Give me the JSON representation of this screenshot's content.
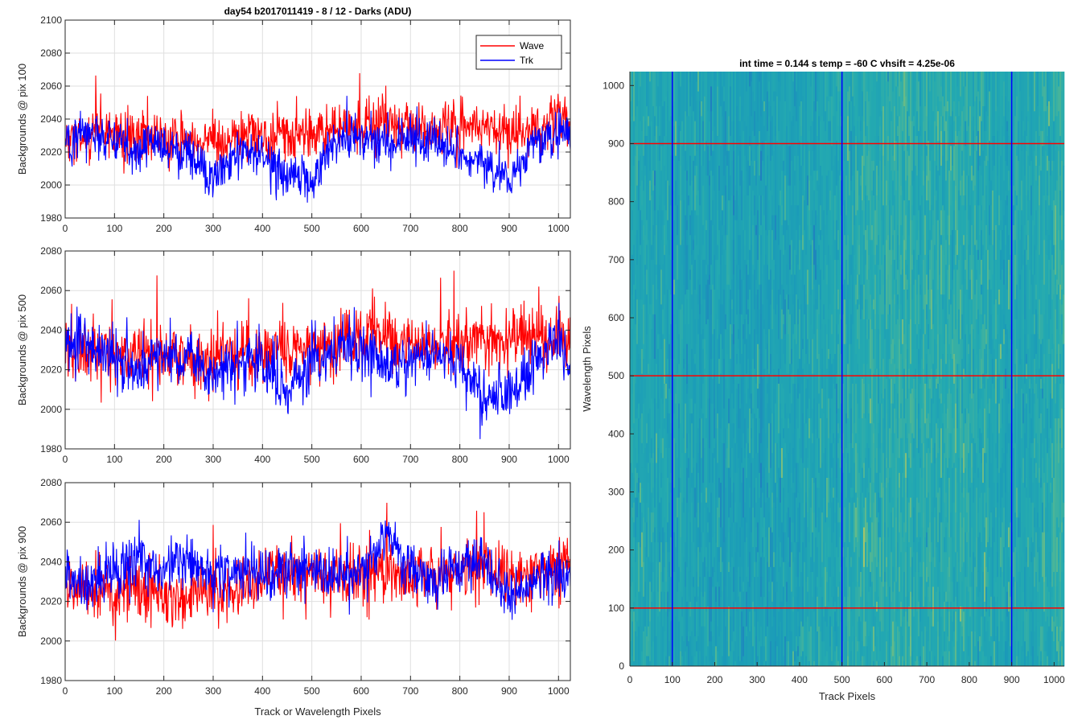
{
  "chart_data": [
    {
      "type": "line",
      "title": "day54 b2017011419 - 8 / 12 - Darks (ADU)",
      "xlabel": "",
      "ylabel": "Backgrounds @ pix 100",
      "xlim": [
        0,
        1024
      ],
      "ylim": [
        1980,
        2100
      ],
      "xticks": [
        0,
        100,
        200,
        300,
        400,
        500,
        600,
        700,
        800,
        900,
        1000
      ],
      "xtick_labels": [
        "0",
        "100",
        "200",
        "300",
        "400",
        "500",
        "600",
        "700",
        "800",
        "900",
        "1000"
      ],
      "yticks": [
        1980,
        2000,
        2020,
        2040,
        2060,
        2080,
        2100
      ],
      "ytick_labels": [
        "1980",
        "2000",
        "2020",
        "2040",
        "2060",
        "2080",
        "2100"
      ],
      "grid": true,
      "legend": {
        "location": "top-right",
        "entries": [
          "Wave",
          "Trk"
        ]
      },
      "series": [
        {
          "name": "Wave",
          "color": "#ff0000",
          "x": [
            0,
            50,
            100,
            150,
            200,
            250,
            300,
            350,
            400,
            450,
            500,
            550,
            600,
            650,
            700,
            750,
            800,
            850,
            900,
            950,
            1000,
            1024
          ],
          "values": [
            2028,
            2030,
            2031,
            2029,
            2028,
            2027,
            2028,
            2027,
            2031,
            2030,
            2031,
            2033,
            2036,
            2037,
            2035,
            2034,
            2035,
            2034,
            2033,
            2034,
            2036,
            2036
          ]
        },
        {
          "name": "Trk",
          "color": "#0000ff",
          "x": [
            0,
            50,
            100,
            150,
            200,
            250,
            300,
            350,
            400,
            450,
            500,
            550,
            600,
            650,
            700,
            750,
            800,
            850,
            900,
            950,
            1000,
            1024
          ],
          "values": [
            2024,
            2032,
            2027,
            2022,
            2025,
            2016,
            2005,
            2020,
            2019,
            2005,
            2002,
            2028,
            2029,
            2024,
            2028,
            2025,
            2019,
            2012,
            2002,
            2024,
            2030,
            2032
          ]
        }
      ]
    },
    {
      "type": "line",
      "title": "",
      "xlabel": "",
      "ylabel": "Backgrounds @ pix 500",
      "xlim": [
        0,
        1024
      ],
      "ylim": [
        1980,
        2080
      ],
      "xticks": [
        0,
        100,
        200,
        300,
        400,
        500,
        600,
        700,
        800,
        900,
        1000
      ],
      "xtick_labels": [
        "0",
        "100",
        "200",
        "300",
        "400",
        "500",
        "600",
        "700",
        "800",
        "900",
        "1000"
      ],
      "yticks": [
        1980,
        2000,
        2020,
        2040,
        2060,
        2080
      ],
      "ytick_labels": [
        "1980",
        "2000",
        "2020",
        "2040",
        "2060",
        "2080"
      ],
      "grid": true,
      "series": [
        {
          "name": "Wave",
          "color": "#ff0000",
          "x": [
            0,
            50,
            100,
            150,
            200,
            250,
            300,
            350,
            400,
            450,
            500,
            550,
            600,
            650,
            700,
            750,
            800,
            850,
            900,
            950,
            1000,
            1024
          ],
          "values": [
            2029,
            2028,
            2027,
            2028,
            2027,
            2028,
            2027,
            2029,
            2031,
            2032,
            2030,
            2031,
            2037,
            2038,
            2033,
            2034,
            2034,
            2035,
            2035,
            2036,
            2036,
            2037
          ]
        },
        {
          "name": "Trk",
          "color": "#0000ff",
          "x": [
            0,
            50,
            100,
            150,
            200,
            250,
            300,
            350,
            400,
            450,
            500,
            550,
            600,
            650,
            700,
            750,
            800,
            850,
            900,
            950,
            1000,
            1024
          ],
          "values": [
            2032,
            2033,
            2026,
            2018,
            2030,
            2026,
            2018,
            2024,
            2022,
            2010,
            2024,
            2031,
            2030,
            2023,
            2024,
            2030,
            2020,
            2005,
            2006,
            2024,
            2034,
            2022
          ]
        }
      ]
    },
    {
      "type": "line",
      "title": "",
      "xlabel": "Track or Wavelength Pixels",
      "ylabel": "Backgrounds @ pix 900",
      "xlim": [
        0,
        1024
      ],
      "ylim": [
        1980,
        2080
      ],
      "xticks": [
        0,
        100,
        200,
        300,
        400,
        500,
        600,
        700,
        800,
        900,
        1000
      ],
      "xtick_labels": [
        "0",
        "100",
        "200",
        "300",
        "400",
        "500",
        "600",
        "700",
        "800",
        "900",
        "1000"
      ],
      "yticks": [
        1980,
        2000,
        2020,
        2040,
        2060,
        2080
      ],
      "ytick_labels": [
        "1980",
        "2000",
        "2020",
        "2040",
        "2060",
        "2080"
      ],
      "grid": true,
      "series": [
        {
          "name": "Wave",
          "color": "#ff0000",
          "x": [
            0,
            50,
            100,
            150,
            200,
            250,
            300,
            350,
            400,
            450,
            500,
            550,
            600,
            650,
            700,
            750,
            800,
            850,
            900,
            950,
            1000,
            1024
          ],
          "values": [
            2028,
            2026,
            2025,
            2024,
            2022,
            2023,
            2024,
            2027,
            2031,
            2035,
            2034,
            2033,
            2032,
            2036,
            2033,
            2034,
            2036,
            2037,
            2032,
            2035,
            2036,
            2036
          ]
        },
        {
          "name": "Trk",
          "color": "#0000ff",
          "x": [
            0,
            50,
            100,
            150,
            200,
            250,
            300,
            350,
            400,
            450,
            500,
            550,
            600,
            650,
            700,
            750,
            800,
            850,
            900,
            950,
            1000,
            1024
          ],
          "values": [
            2031,
            2028,
            2036,
            2042,
            2035,
            2041,
            2033,
            2036,
            2034,
            2036,
            2035,
            2033,
            2035,
            2052,
            2035,
            2032,
            2038,
            2040,
            2024,
            2030,
            2032,
            2032
          ]
        }
      ]
    },
    {
      "type": "heatmap",
      "title": "int time = 0.144 s   temp = -60 C   vhsift = 4.25e-06",
      "xlabel": "Track Pixels",
      "ylabel": "Wavelength Pixels",
      "xlim": [
        0,
        1024
      ],
      "ylim": [
        0,
        1024
      ],
      "xticks": [
        0,
        100,
        200,
        300,
        400,
        500,
        600,
        700,
        800,
        900,
        1000
      ],
      "xtick_labels": [
        "0",
        "100",
        "200",
        "300",
        "400",
        "500",
        "600",
        "700",
        "800",
        "900",
        "1000"
      ],
      "yticks": [
        0,
        100,
        200,
        300,
        400,
        500,
        600,
        700,
        800,
        900,
        1000
      ],
      "ytick_labels": [
        "0",
        "100",
        "200",
        "300",
        "400",
        "500",
        "600",
        "700",
        "800",
        "900",
        "1000"
      ],
      "colormap": "parula",
      "colormap_stops": [
        "#1f7fbf",
        "#1b9cb8",
        "#24aab0",
        "#59b98f",
        "#a3c46a"
      ],
      "column_brightness": {
        "x": [
          0,
          100,
          200,
          300,
          400,
          500,
          600,
          700,
          800,
          900,
          1000,
          1024
        ],
        "values": [
          0.4,
          0.38,
          0.34,
          0.32,
          0.36,
          0.42,
          0.52,
          0.5,
          0.46,
          0.4,
          0.5,
          0.52
        ]
      },
      "vertical_lines": {
        "x": [
          100,
          500,
          900
        ],
        "color": "#0000ff"
      },
      "horizontal_lines": {
        "y": [
          100,
          500,
          900
        ],
        "color": "#ff0000"
      }
    }
  ]
}
